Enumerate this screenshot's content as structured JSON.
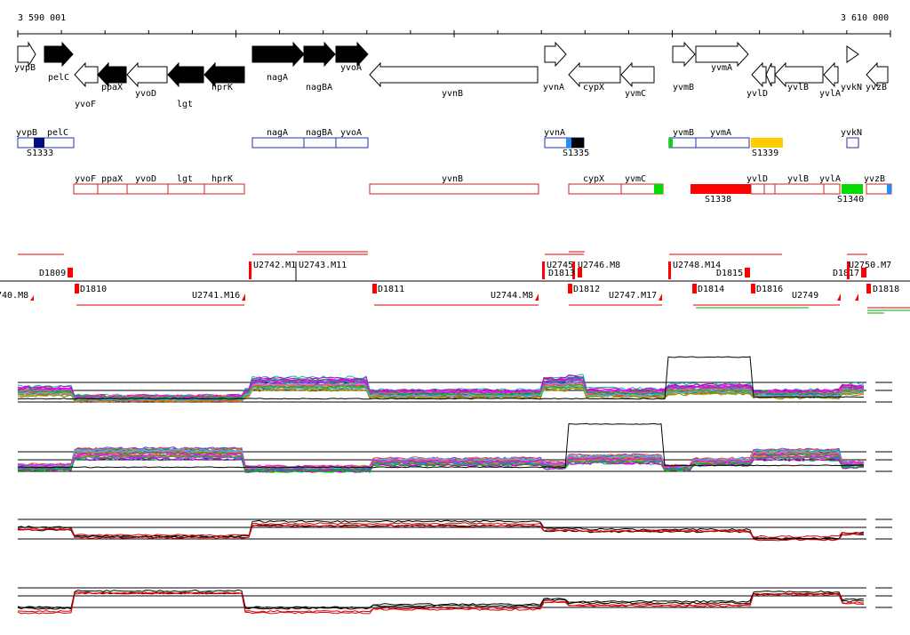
{
  "scale": {
    "start_label": "3 590 001",
    "end_label": "3 610 000"
  },
  "colors": {
    "gene_fill_dark": "#000000",
    "gene_outline": "#000000",
    "operon_blue": "#2033b0",
    "operon_red": "#cc2020",
    "feature_red": "#ff0000",
    "feature_green": "#00dd00",
    "feature_yellow": "#ffcc00",
    "feature_cyan": "#1e90ff",
    "feature_navy": "#001080",
    "trace_black": "#000000",
    "trace_red": "#dd0000"
  },
  "genes_forward": [
    "yvpB",
    "pelC",
    "nagA",
    "nagBA",
    "yvoA",
    "yvnA",
    "yvmB",
    "yvmA",
    "yvkN"
  ],
  "genes_reverse": [
    "yvoF",
    "ppaX",
    "yvoD",
    "lgt",
    "hprK",
    "yvnB",
    "cypX",
    "yvmC",
    "yvlD",
    "yvlB",
    "yvlA",
    "yvzB"
  ],
  "operons_blue": {
    "labels": [
      "yvpB",
      "pelC",
      "nagA",
      "nagBA",
      "yvoA",
      "yvnA",
      "yvmB",
      "yvmA",
      "yvkN"
    ],
    "sites": [
      "S1333",
      "S1335",
      "S1339"
    ]
  },
  "operons_red": {
    "labels": [
      "yvoF",
      "ppaX",
      "yvoD",
      "lgt",
      "hprK",
      "yvnB",
      "cypX",
      "yvmC",
      "yvlD",
      "yvlB",
      "yvlA",
      "yvzB"
    ],
    "sites": [
      "S1338",
      "S1340"
    ]
  },
  "upstream_labels": [
    "D1809",
    "U2742.M1",
    "U2743.M11",
    "U2745",
    "U2746.M8",
    "D1813",
    "U2748.M14",
    "D1815",
    "D1817",
    "U2750.M7"
  ],
  "downstream_labels": [
    "740.M8",
    "D1810",
    "U2741.M16",
    "D1811",
    "U2744.M8",
    "D1812",
    "U2747.M17",
    "D1814",
    "D1816",
    "U2749",
    "D1818"
  ]
}
